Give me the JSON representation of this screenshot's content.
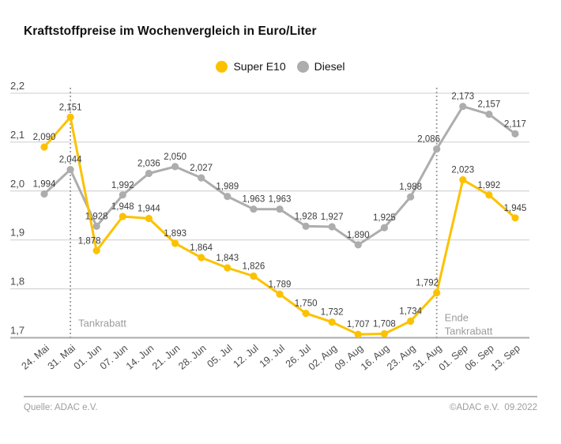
{
  "chart_data": {
    "type": "line",
    "title": "Kraftstoffpreise im Wochenvergleich in Euro/Liter",
    "categories": [
      "24. Mai",
      "31. Mai",
      "01. Jun",
      "07. Jun",
      "14. Jun",
      "21. Jun",
      "28. Jun",
      "05. Jul",
      "12. Jul",
      "19. Jul",
      "26. Jul",
      "02. Aug",
      "09. Aug",
      "16. Aug",
      "23. Aug",
      "31. Aug",
      "01. Sep",
      "06. Sep",
      "13. Sep"
    ],
    "series": [
      {
        "name": "Super E10",
        "color": "#fcc200",
        "values": [
          2.09,
          2.151,
          1.878,
          1.948,
          1.944,
          1.893,
          1.864,
          1.843,
          1.826,
          1.789,
          1.75,
          1.732,
          1.707,
          1.708,
          1.734,
          1.792,
          2.023,
          1.992,
          1.945
        ],
        "labels": [
          "2,090",
          "2,151",
          "1,878",
          "1,948",
          "1,944",
          "1,893",
          "1,864",
          "1,843",
          "1,826",
          "1,789",
          "1,750",
          "1,732",
          "1,707",
          "1,708",
          "1,734",
          "1,792",
          "2,023",
          "1,992",
          "1,945"
        ]
      },
      {
        "name": "Diesel",
        "color": "#adadad",
        "values": [
          1.994,
          2.044,
          1.928,
          1.992,
          2.036,
          2.05,
          2.027,
          1.989,
          1.963,
          1.963,
          1.928,
          1.927,
          1.89,
          1.925,
          1.988,
          2.086,
          2.173,
          2.157,
          2.117
        ],
        "labels": [
          "1,994",
          "2,044",
          "1,928",
          "1,992",
          "2,036",
          "2,050",
          "2,027",
          "1,989",
          "1,963",
          "1,963",
          "1,928",
          "1,927",
          "1,890",
          "1,925",
          "1,988",
          "2,086",
          "2,173",
          "2,157",
          "2,117"
        ]
      }
    ],
    "ylim": [
      1.7,
      2.2
    ],
    "yticks": [
      "2,2",
      "2,1",
      "2,0",
      "1,9",
      "1,8",
      "1,7"
    ],
    "grid": true,
    "legend_position": "top-center",
    "annotations": [
      {
        "text": "Tankrabatt",
        "lines": [
          "Tankrabatt"
        ],
        "at_category": "31. Mai"
      },
      {
        "text": "Ende Tankrabatt",
        "lines": [
          "Ende",
          "Tankrabatt"
        ],
        "at_category": "31. Aug"
      }
    ],
    "label_offsets": {
      "0": {
        "2": -9,
        "15": -12
      },
      "1": {
        "15": -10
      }
    },
    "colors": {
      "grid": "#cccccc",
      "axis": "#ababab",
      "ticks": "#4b4b4b",
      "value_labels": "#3c3c3c",
      "annotation": "#9b9b9b",
      "background": "#ffffff"
    }
  },
  "footer": {
    "source": "Quelle: ADAC e.V.",
    "copyright": "©ADAC e.V.  09.2022"
  }
}
